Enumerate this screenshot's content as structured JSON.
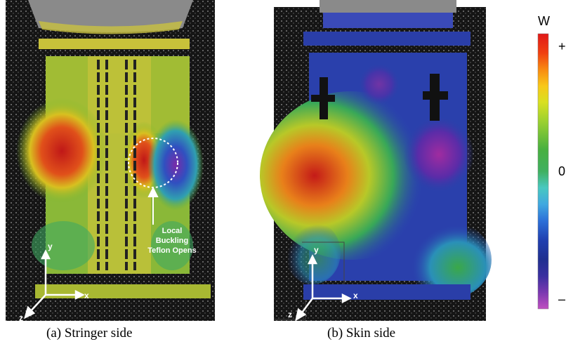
{
  "colorbar": {
    "title": "W",
    "max_label": "+",
    "mid_label": "0",
    "min_label": "–"
  },
  "panels": [
    {
      "caption": "(a)  Stringer side",
      "axes": {
        "y": "y",
        "x": "x",
        "z": "z"
      },
      "annotation": [
        "Local",
        "Buckling",
        "Teflon Opens"
      ]
    },
    {
      "caption": "(b)  Skin side",
      "axes": {
        "y": "y",
        "x": "x",
        "z": "z"
      }
    }
  ]
}
